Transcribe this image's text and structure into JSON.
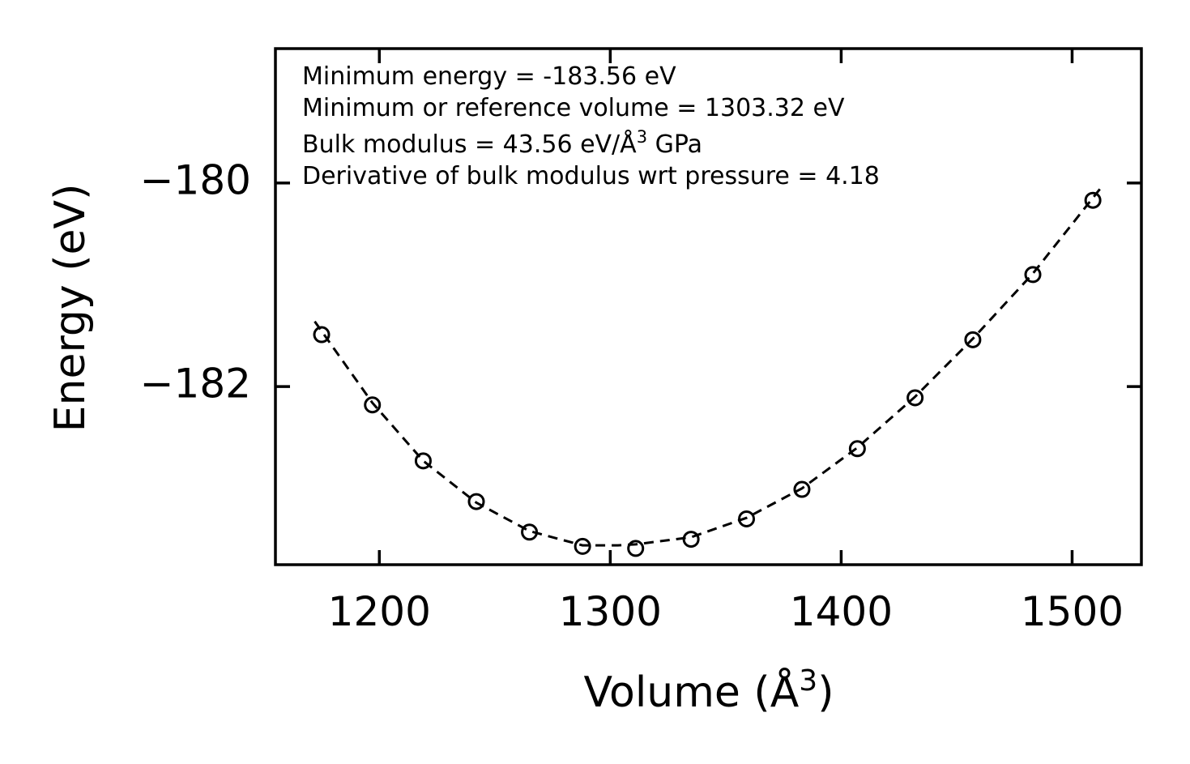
{
  "chart_data": {
    "type": "scatter",
    "title": "",
    "xlabel": "Volume (Å",
    "xlabel_sup": "3",
    "xlabel_suffix": ")",
    "ylabel": "Energy (eV)",
    "xlim": [
      1155,
      1530
    ],
    "ylim": [
      -183.75,
      -178.68
    ],
    "xticks": [
      1200,
      1300,
      1400,
      1500
    ],
    "xtick_labels": [
      "1200",
      "1300",
      "1400",
      "1500"
    ],
    "yticks": [
      -180,
      -182
    ],
    "ytick_labels": [
      "−180",
      "−182"
    ],
    "grid": false,
    "series": [
      {
        "name": "data",
        "style": "open-circle",
        "x": [
          1175,
          1197,
          1219,
          1242,
          1265,
          1288,
          1311,
          1335,
          1359,
          1383,
          1407,
          1432,
          1457,
          1483,
          1509
        ],
        "y": [
          -181.49,
          -182.18,
          -182.73,
          -183.13,
          -183.43,
          -183.57,
          -183.59,
          -183.5,
          -183.3,
          -183.01,
          -182.61,
          -182.11,
          -181.54,
          -180.9,
          -180.17
        ]
      },
      {
        "name": "fit",
        "style": "dashed-line",
        "x": [
          1172,
          1197,
          1219,
          1242,
          1265,
          1288,
          1303.32,
          1311,
          1335,
          1359,
          1383,
          1407,
          1432,
          1457,
          1483,
          1512
        ],
        "y": [
          -181.36,
          -182.16,
          -182.73,
          -183.14,
          -183.42,
          -183.56,
          -183.56,
          -183.55,
          -183.48,
          -183.29,
          -183.0,
          -182.6,
          -182.1,
          -181.53,
          -180.89,
          -180.06
        ]
      }
    ],
    "annotations": {
      "line1": "Minimum energy = -183.56 eV",
      "line2": "Minimum or reference volume = 1303.32 eV",
      "line3_text": "Bulk modulus = 43.56 eV/Å",
      "line3_sup": "3",
      "line3_suffix": " GPa",
      "line4": "Derivative of bulk modulus wrt pressure = 4.18"
    }
  }
}
